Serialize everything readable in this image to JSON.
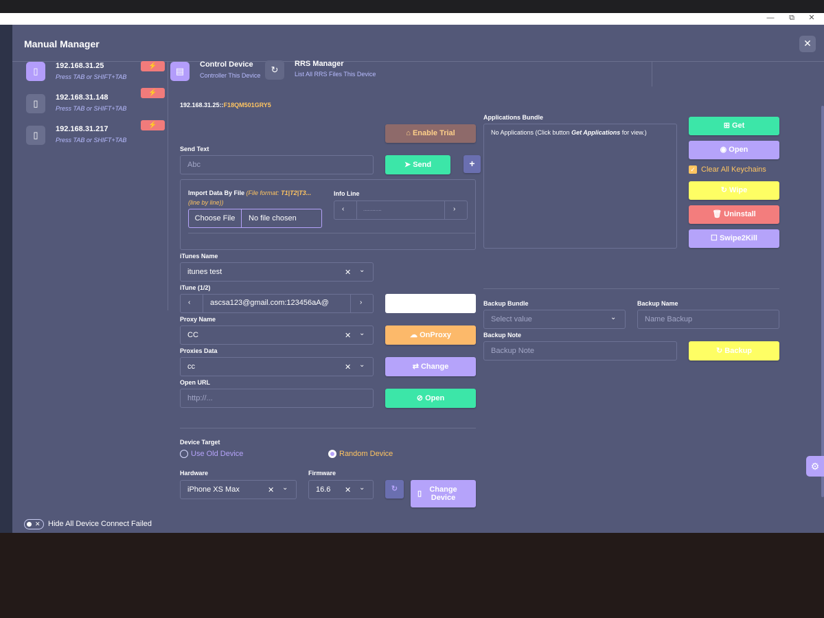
{
  "window_controls": {
    "minimize": "—",
    "restore": "⧉",
    "close": "✕"
  },
  "modal": {
    "title": "Manual Manager",
    "close": "✕"
  },
  "devices": [
    {
      "ip": "192.168.31.25",
      "hint": "Press TAB or SHIFT+TAB",
      "active": true
    },
    {
      "ip": "192.168.31.148",
      "hint": "Press TAB or SHIFT+TAB",
      "active": false
    },
    {
      "ip": "192.168.31.217",
      "hint": "Press TAB or SHIFT+TAB",
      "active": false
    }
  ],
  "tabs": {
    "control": {
      "title": "Control Device",
      "sub": "Controller This Device"
    },
    "rrs": {
      "title": "RRS Manager",
      "sub": "List All RRS Files This Device"
    }
  },
  "device_id": {
    "ip": "192.168.31.25::",
    "serial": "F18QM501GRY5"
  },
  "enable_trial": "Enable Trial",
  "send_text": {
    "label": "Send Text",
    "placeholder": "Abc",
    "send": "Send",
    "plus": "+"
  },
  "import": {
    "label": "Import Data By File",
    "format_prefix": "(File format: ",
    "format": "T1|T2|T3...",
    "line": "(line by line))",
    "choose": "Choose File",
    "chosen": "No file chosen"
  },
  "info_line": {
    "label": "Info Line",
    "value": "............"
  },
  "itunes": {
    "label": "iTunes Name",
    "value": "itunes test"
  },
  "itune_nav": {
    "label": "iTune (1/2)",
    "value": "ascsa123@gmail.com:123456aA@"
  },
  "proxy": {
    "label": "Proxy Name",
    "value": "CC",
    "button": "OnProxy"
  },
  "proxies_data": {
    "label": "Proxies Data",
    "value": "cc",
    "button": "Change"
  },
  "open_url": {
    "label": "Open URL",
    "placeholder": "http://...",
    "button": "Open"
  },
  "device_target": {
    "label": "Device Target",
    "old": "Use Old Device",
    "random": "Random Device"
  },
  "hardware": {
    "label": "Hardware",
    "value": "iPhone XS Max"
  },
  "firmware": {
    "label": "Firmware",
    "value": "16.6"
  },
  "change_device": {
    "line1": "Change",
    "line2": "Device"
  },
  "apps": {
    "label": "Applications Bundle",
    "empty_prefix": "No Applications (Click button ",
    "empty_bold": "Get Applications",
    "empty_suffix": " for view.)"
  },
  "actions": {
    "get": "Get",
    "open": "Open",
    "clear": "Clear All Keychains",
    "wipe": "Wipe",
    "uninstall": "Uninstall",
    "swipe": "Swipe2Kill"
  },
  "backup": {
    "bundle_label": "Backup Bundle",
    "bundle_placeholder": "Select value",
    "name_label": "Backup Name",
    "name_placeholder": "Name Backup",
    "note_label": "Backup Note",
    "note_placeholder": "Backup Note",
    "button": "Backup"
  },
  "hide_failed": "Hide All Device Connect Failed",
  "colors": {
    "green": "#3ce6a8",
    "purple": "#b5a3fa",
    "yellow": "#fefe64",
    "red": "#f37d7d",
    "orange": "#fcb96a",
    "accent_text": "#ffc561"
  }
}
